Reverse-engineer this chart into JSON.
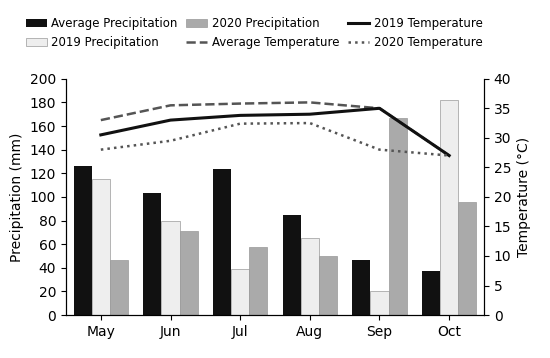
{
  "months": [
    "May",
    "Jun",
    "Jul",
    "Aug",
    "Sep",
    "Oct"
  ],
  "avg_precip": [
    126,
    103,
    124,
    85,
    47,
    37
  ],
  "precip_2019": [
    115,
    80,
    39,
    65,
    20,
    182
  ],
  "precip_2020": [
    47,
    71,
    58,
    50,
    167,
    96
  ],
  "avg_temp": [
    33.0,
    35.5,
    35.8,
    36.0,
    35.0,
    27.0
  ],
  "temp_2019": [
    30.5,
    33.0,
    33.8,
    34.0,
    35.0,
    27.0
  ],
  "temp_2020": [
    28.0,
    29.5,
    32.4,
    32.5,
    28.0,
    27.0
  ],
  "bar_width": 0.26,
  "ylabel_left": "Precipitation (mm)",
  "ylabel_right": "Temperature (°C)",
  "ylim_left": [
    0,
    200
  ],
  "ylim_right": [
    0,
    40
  ],
  "yticks_left": [
    0,
    20,
    40,
    60,
    80,
    100,
    120,
    140,
    160,
    180,
    200
  ],
  "yticks_right": [
    0,
    5,
    10,
    15,
    20,
    25,
    30,
    35,
    40
  ],
  "color_avg_precip": "#111111",
  "color_2019_precip": "#eeeeee",
  "color_2020_precip": "#aaaaaa",
  "color_avg_temp": "#555555",
  "color_2019_temp": "#111111",
  "color_2020_temp": "#555555",
  "legend_fontsize": 8.5,
  "axis_fontsize": 10
}
